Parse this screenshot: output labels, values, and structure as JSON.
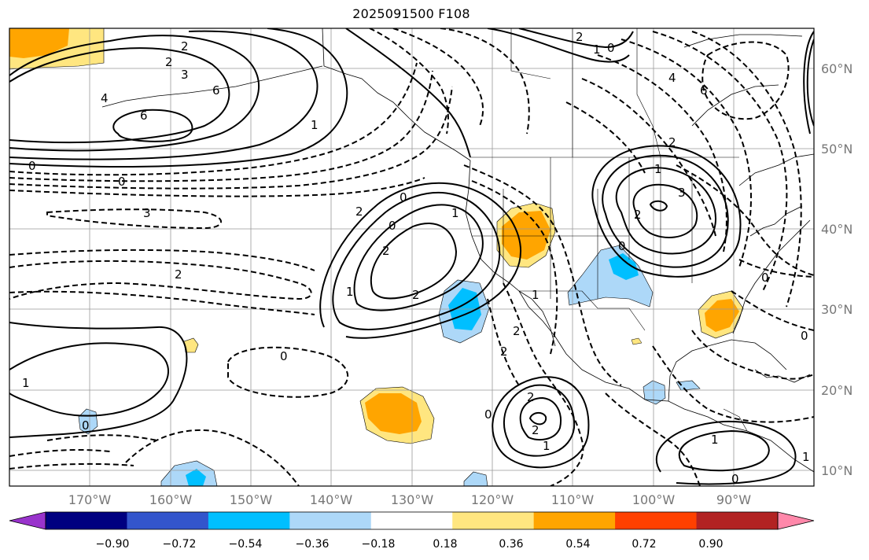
{
  "title": "2025091500 F108",
  "map": {
    "projection": "plate-carree",
    "lon_range": [
      -180,
      -80
    ],
    "lat_range": [
      8,
      65
    ],
    "gridlines": true,
    "coastlines": true,
    "borders": true,
    "lat_labels": [
      "60°N",
      "50°N",
      "40°N",
      "30°N",
      "20°N",
      "10°N"
    ],
    "lon_labels": [
      "170°W",
      "160°W",
      "150°W",
      "140°W",
      "130°W",
      "120°W",
      "110°W",
      "100°W",
      "90°W"
    ],
    "contour_labels": [
      "2",
      "2",
      "3",
      "4",
      "6",
      "6",
      "1",
      "0",
      "0",
      "3",
      "2",
      "2",
      "0",
      "2",
      "2",
      "1",
      "0",
      "1",
      "0",
      "2",
      "1",
      "2",
      "1",
      "3",
      "2",
      "2",
      "6",
      "4",
      "0",
      "2",
      "1",
      "0",
      "0",
      "2",
      "1",
      "2",
      "1",
      "0",
      "1",
      "0",
      "1",
      "0",
      "0"
    ]
  },
  "colorbar": {
    "ticks": [
      "−0.90",
      "−0.72",
      "−0.54",
      "−0.36",
      "−0.18",
      "0.18",
      "0.36",
      "0.54",
      "0.72",
      "0.90"
    ],
    "colors": [
      "#9933cc",
      "#000080",
      "#3355cc",
      "#00bfff",
      "#add8f8",
      "#ffffff",
      "#ffe680",
      "#ffa500",
      "#ff4000",
      "#b22222",
      "#ff88aa"
    ],
    "extend": "both"
  }
}
